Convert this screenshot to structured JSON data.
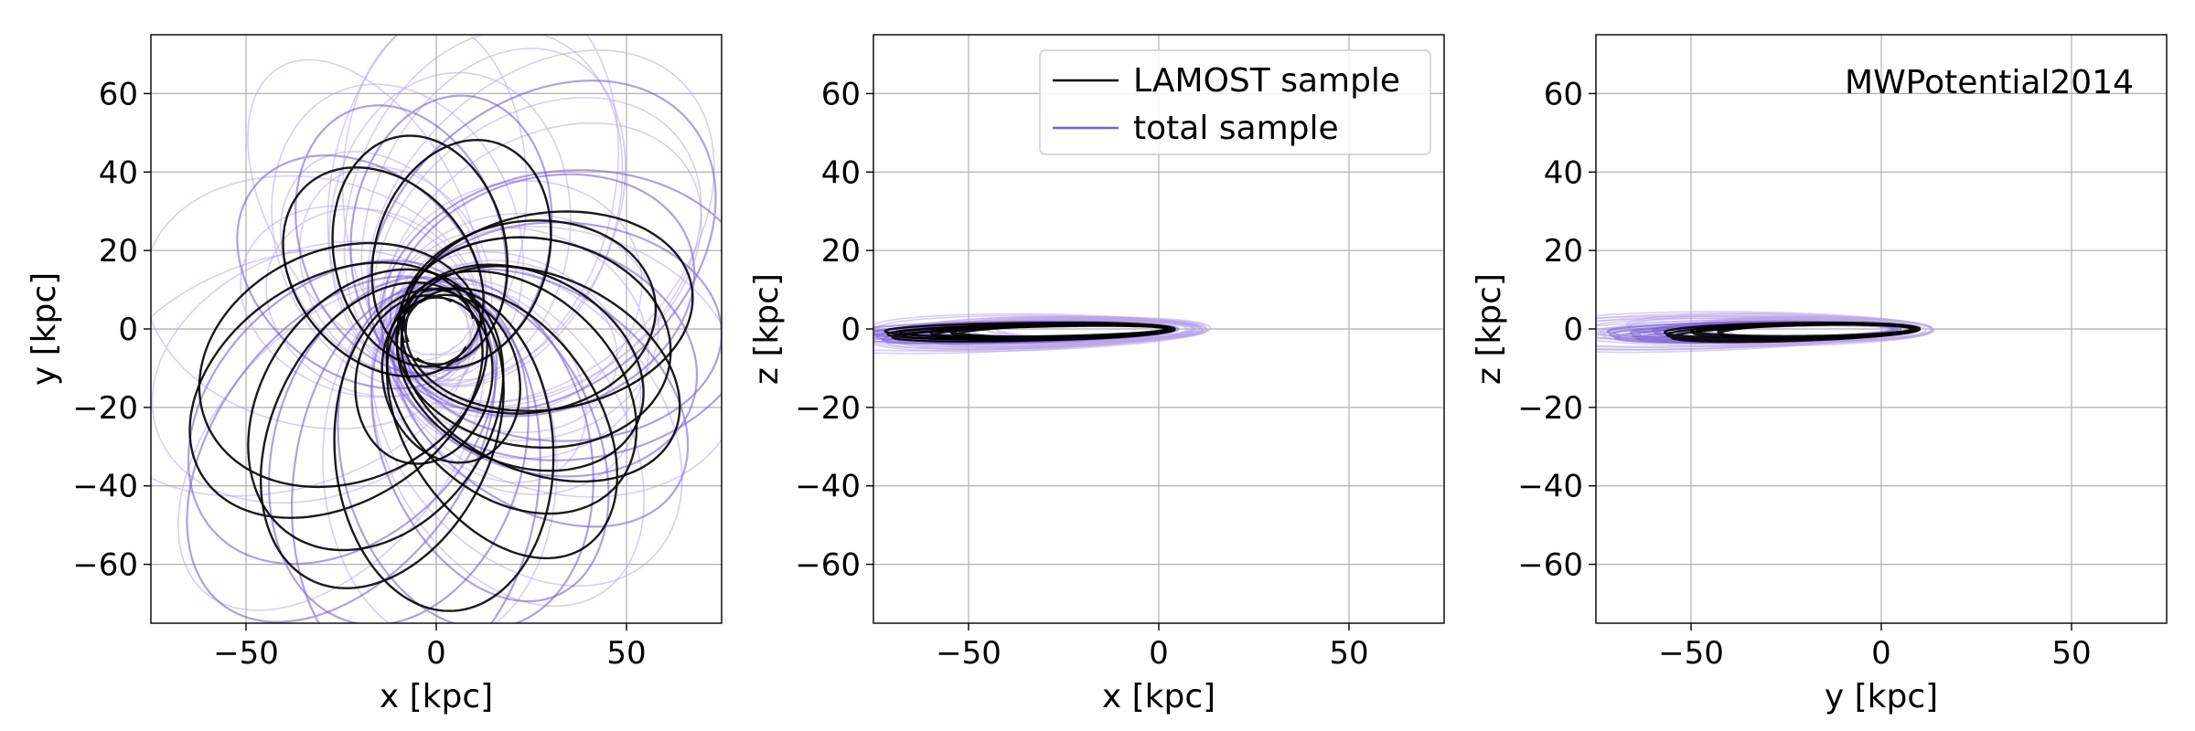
{
  "figure": {
    "colors": {
      "lamost": "#000000",
      "total": "#7b5fd4",
      "total_light": "#b8a6e8",
      "grid": "#b0b0b0"
    }
  },
  "legend": {
    "items": [
      {
        "label": "LAMOST sample",
        "color": "#000000"
      },
      {
        "label": "total sample",
        "color": "#7b5fd4"
      }
    ]
  },
  "chart_data": [
    {
      "type": "line",
      "title": "",
      "xlabel": "x [kpc]",
      "ylabel": "y [kpc]",
      "xlim": [
        -75,
        75
      ],
      "ylim": [
        -75,
        75
      ],
      "xticks": [
        -50,
        0,
        50
      ],
      "yticks": [
        -60,
        -40,
        -20,
        0,
        20,
        40,
        60
      ],
      "xtick_labels": [
        "−50",
        "0",
        "50"
      ],
      "ytick_labels": [
        "−60",
        "−40",
        "−20",
        "0",
        "20",
        "40",
        "60"
      ],
      "grid": true,
      "annotation": "",
      "series": [
        {
          "name": "LAMOST sample",
          "color": "#000000",
          "orbits": [
            {
              "rot": 110,
              "apo": 68,
              "peri": 8,
              "cx": 0,
              "cy": 0,
              "loops": 3
            },
            {
              "rot": 125,
              "apo": 62,
              "peri": 10,
              "cx": 0,
              "cy": 0,
              "loops": 2
            },
            {
              "rot": 140,
              "apo": 58,
              "peri": 9,
              "cx": 0,
              "cy": 0,
              "loops": 2
            },
            {
              "rot": 15,
              "apo": 72,
              "peri": 10,
              "cx": 0,
              "cy": 0,
              "loops": 3
            },
            {
              "rot": 5,
              "apo": 65,
              "peri": 12,
              "cx": 0,
              "cy": 0,
              "loops": 2
            },
            {
              "rot": 235,
              "apo": 50,
              "peri": 9,
              "cx": 0,
              "cy": 0,
              "loops": 3
            },
            {
              "rot": 60,
              "apo": 35,
              "peri": 8,
              "cx": 0,
              "cy": 0,
              "loops": 2
            }
          ]
        },
        {
          "name": "total sample",
          "color": "#7b5fd4",
          "orbits": [
            {
              "rot": 100,
              "apo": 75,
              "peri": 9,
              "cx": 0,
              "cy": 0,
              "loops": 3
            },
            {
              "rot": 150,
              "apo": 70,
              "peri": 11,
              "cx": 0,
              "cy": 0,
              "loops": 2
            },
            {
              "rot": 25,
              "apo": 78,
              "peri": 12,
              "cx": 0,
              "cy": 0,
              "loops": 3
            },
            {
              "rot": 245,
              "apo": 60,
              "peri": 10,
              "cx": 0,
              "cy": 0,
              "loops": 3
            },
            {
              "rot": 170,
              "apo": 85,
              "peri": 14,
              "cx": 0,
              "cy": 0,
              "loops": 2
            },
            {
              "rot": 35,
              "apo": 90,
              "peri": 10,
              "cx": 0,
              "cy": 0,
              "loops": 2
            }
          ]
        }
      ]
    },
    {
      "type": "line",
      "title": "",
      "xlabel": "x [kpc]",
      "ylabel": "z [kpc]",
      "xlim": [
        -75,
        75
      ],
      "ylim": [
        -75,
        75
      ],
      "xticks": [
        -50,
        0,
        50
      ],
      "yticks": [
        -60,
        -40,
        -20,
        0,
        20,
        40,
        60
      ],
      "xtick_labels": [
        "−50",
        "0",
        "50"
      ],
      "ytick_labels": [
        "−60",
        "−40",
        "−20",
        "0",
        "20",
        "40",
        "60"
      ],
      "grid": true,
      "annotation": "",
      "legend_location": "top-right",
      "series": [
        {
          "name": "LAMOST sample",
          "color": "#000000",
          "orbits": [
            {
              "rot": -8,
              "apo": 72,
              "peri": 3,
              "cx": 0,
              "cy": 0,
              "loops": 3
            },
            {
              "rot": 10,
              "apo": 60,
              "peri": 3,
              "cx": 0,
              "cy": 0,
              "loops": 2
            },
            {
              "rot": -5,
              "apo": 55,
              "peri": 4,
              "cx": 0,
              "cy": 0,
              "loops": 3
            },
            {
              "rot": 6,
              "apo": 68,
              "peri": 2,
              "cx": 0,
              "cy": 0,
              "loops": 2
            }
          ]
        },
        {
          "name": "total sample",
          "color": "#7b5fd4",
          "orbits": [
            {
              "rot": -6,
              "apo": 80,
              "peri": 4,
              "cx": 0,
              "cy": 0,
              "loops": 3
            },
            {
              "rot": 4,
              "apo": 75,
              "peri": 3,
              "cx": 0,
              "cy": 0,
              "loops": 3
            },
            {
              "rot": 9,
              "apo": 70,
              "peri": 5,
              "cx": 0,
              "cy": 0,
              "loops": 2
            },
            {
              "rot": -11,
              "apo": 65,
              "peri": 3,
              "cx": 0,
              "cy": 0,
              "loops": 3
            }
          ]
        }
      ]
    },
    {
      "type": "line",
      "title": "",
      "xlabel": "y [kpc]",
      "ylabel": "z [kpc]",
      "xlim": [
        -75,
        75
      ],
      "ylim": [
        -75,
        75
      ],
      "xticks": [
        -50,
        0,
        50
      ],
      "yticks": [
        -60,
        -40,
        -20,
        0,
        20,
        40,
        60
      ],
      "xtick_labels": [
        "−50",
        "0",
        "50"
      ],
      "ytick_labels": [
        "−60",
        "−40",
        "−20",
        "0",
        "20",
        "40",
        "60"
      ],
      "grid": true,
      "annotation": "MWPotential2014",
      "series": [
        {
          "name": "LAMOST sample",
          "color": "#000000",
          "orbits": [
            {
              "rot": 5,
              "apo": 62,
              "peri": 4,
              "cx": 5,
              "cy": 0,
              "loops": 3
            },
            {
              "rot": -7,
              "apo": 55,
              "peri": 3,
              "cx": 5,
              "cy": 0,
              "loops": 2
            },
            {
              "rot": 10,
              "apo": 48,
              "peri": 5,
              "cx": 5,
              "cy": 0,
              "loops": 2
            }
          ]
        },
        {
          "name": "total sample",
          "color": "#7b5fd4",
          "orbits": [
            {
              "rot": -4,
              "apo": 72,
              "peri": 4,
              "cx": 0,
              "cy": 0,
              "loops": 3
            },
            {
              "rot": 8,
              "apo": 66,
              "peri": 3,
              "cx": 0,
              "cy": 0,
              "loops": 3
            },
            {
              "rot": -10,
              "apo": 60,
              "peri": 5,
              "cx": 0,
              "cy": 0,
              "loops": 2
            }
          ]
        }
      ]
    }
  ]
}
